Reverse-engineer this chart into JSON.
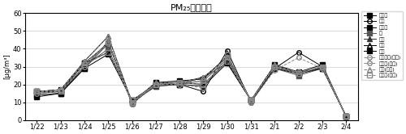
{
  "title": "PM₂₅質量濃度",
  "ylabel": "[μg/m³]",
  "xlabels": [
    "1/22",
    "1/23",
    "1/24",
    "1/25",
    "1/26",
    "1/27",
    "1/28",
    "1/29",
    "1/30",
    "1/31",
    "2/1",
    "2/2",
    "2/3",
    "2/4"
  ],
  "ylim": [
    0,
    60
  ],
  "yticks": [
    0,
    10,
    20,
    30,
    40,
    50,
    60
  ],
  "series": [
    {
      "label": "東大満",
      "color": "#000000",
      "linestyle": "-",
      "marker": "s",
      "markersize": 4,
      "fillstyle": "full",
      "values": [
        16,
        16,
        32,
        38,
        11,
        20,
        21,
        20,
        33,
        11,
        30,
        26,
        30,
        2
      ]
    },
    {
      "label": "大象",
      "color": "#000000",
      "linestyle": "-",
      "marker": "o",
      "markersize": 4,
      "fillstyle": "none",
      "values": [
        15,
        16,
        30,
        44,
        9,
        20,
        20,
        16,
        39,
        10,
        29,
        38,
        30,
        2
      ]
    },
    {
      "label": "大阪市",
      "color": "#000000",
      "linestyle": "-",
      "marker": "s",
      "markersize": 4,
      "fillstyle": "full",
      "values": [
        16,
        17,
        32,
        43,
        10,
        21,
        22,
        23,
        36,
        11,
        31,
        27,
        31,
        2
      ]
    },
    {
      "label": "犀",
      "color": "#555555",
      "linestyle": "-",
      "marker": "s",
      "markersize": 4,
      "fillstyle": "full",
      "values": [
        14,
        15,
        30,
        40,
        10,
        19,
        20,
        22,
        34,
        11,
        29,
        25,
        29,
        2
      ]
    },
    {
      "label": "長市",
      "color": "#333333",
      "linestyle": "-",
      "marker": "^",
      "markersize": 4,
      "fillstyle": "full",
      "values": [
        14,
        15,
        29,
        43,
        10,
        19,
        20,
        24,
        32,
        11,
        30,
        27,
        29,
        2
      ]
    },
    {
      "label": "同田",
      "color": "#000000",
      "linestyle": "-",
      "marker": "^",
      "markersize": 4,
      "fillstyle": "none",
      "values": [
        16,
        17,
        33,
        47,
        10,
        21,
        21,
        24,
        35,
        11,
        31,
        26,
        30,
        2
      ]
    },
    {
      "label": "八尾",
      "color": "#000000",
      "linestyle": "-",
      "marker": "s",
      "markersize": 4,
      "fillstyle": "full",
      "values": [
        13,
        15,
        29,
        37,
        11,
        20,
        20,
        19,
        32,
        11,
        29,
        26,
        29,
        2
      ]
    },
    {
      "label": "河内長野(自動)",
      "color": "#888888",
      "linestyle": "--",
      "marker": "o",
      "markersize": 4,
      "fillstyle": "none",
      "values": [
        15,
        16,
        30,
        44,
        9,
        20,
        20,
        18,
        37,
        10,
        28,
        35,
        29,
        2
      ]
    },
    {
      "label": "大阪市(自動)",
      "color": "#888888",
      "linestyle": "--",
      "marker": "o",
      "markersize": 4,
      "fillstyle": "none",
      "values": [
        16,
        17,
        32,
        43,
        10,
        20,
        21,
        22,
        35,
        11,
        30,
        27,
        30,
        2
      ]
    },
    {
      "label": "同田(自動)",
      "color": "#888888",
      "linestyle": "--",
      "marker": "^",
      "markersize": 4,
      "fillstyle": "none",
      "values": [
        16,
        17,
        33,
        47,
        10,
        21,
        21,
        24,
        35,
        11,
        31,
        26,
        30,
        2
      ]
    },
    {
      "label": "東大阪(自動)",
      "color": "#888888",
      "linestyle": "--",
      "marker": "s",
      "markersize": 4,
      "fillstyle": "none",
      "values": [
        16,
        16,
        31,
        38,
        11,
        20,
        21,
        20,
        33,
        11,
        30,
        26,
        30,
        2
      ]
    }
  ]
}
